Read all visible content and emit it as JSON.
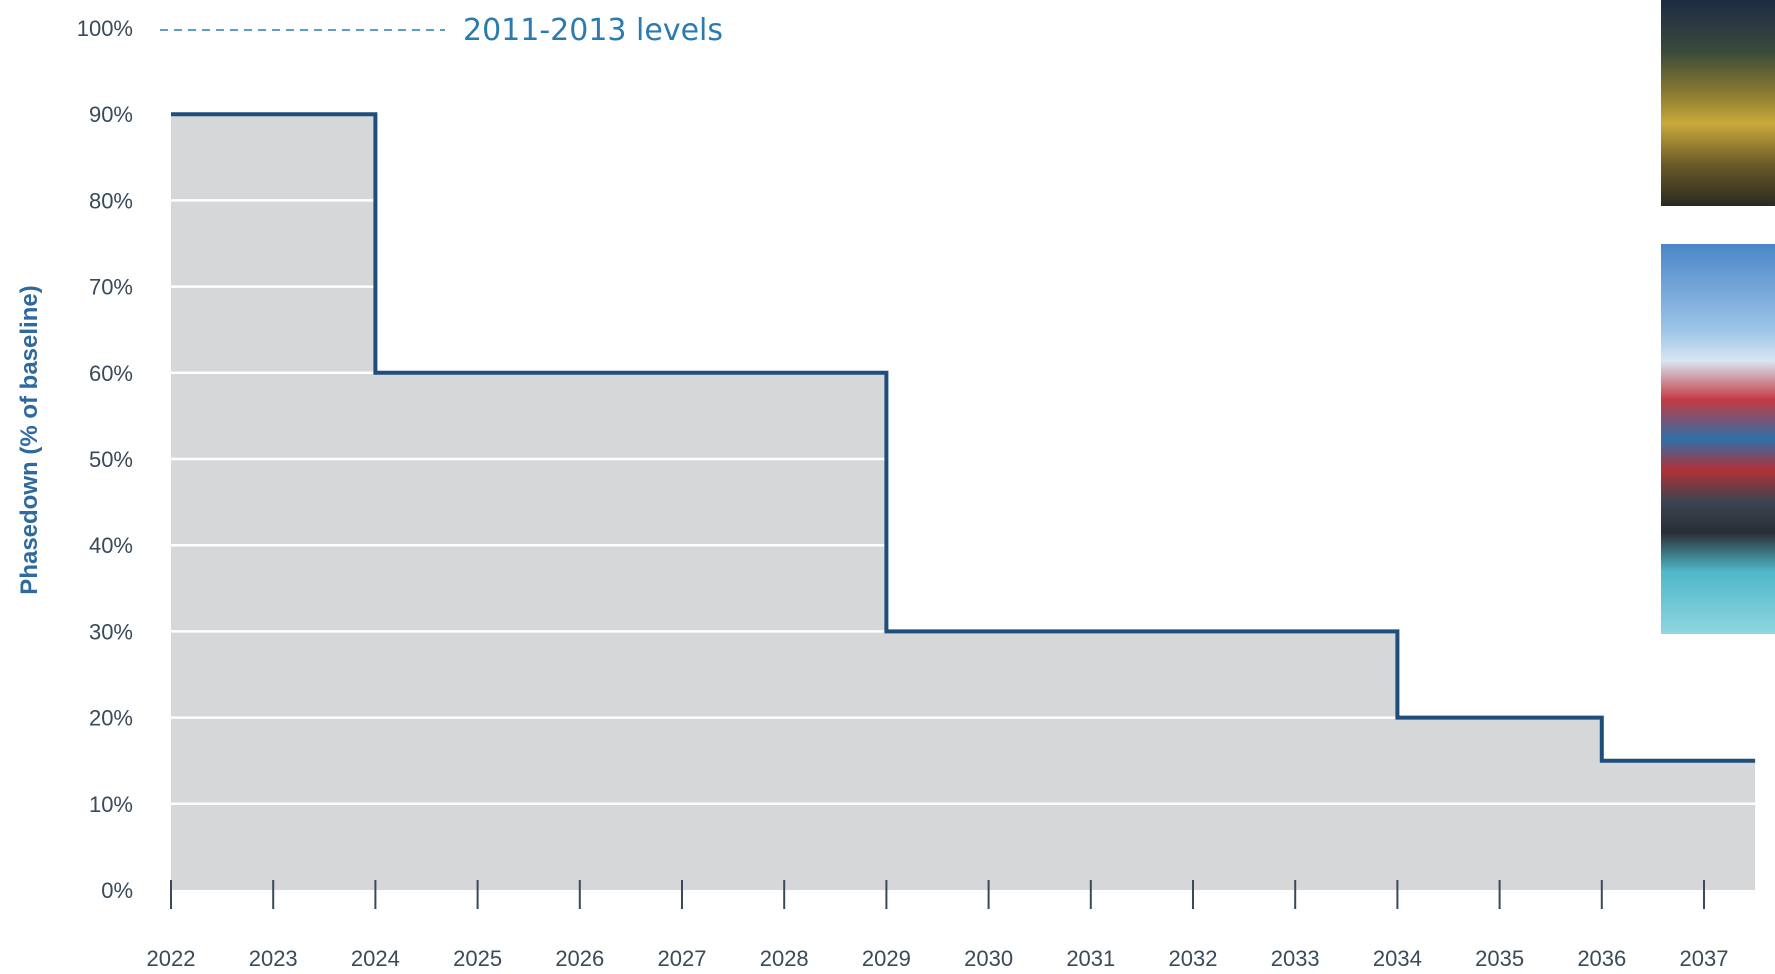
{
  "chart_data": {
    "type": "line",
    "step": true,
    "ylabel": "Phasedown (% of baseline)",
    "ylim": [
      0,
      100
    ],
    "yticks": [
      "0%",
      "10%",
      "20%",
      "30%",
      "40%",
      "50%",
      "60%",
      "70%",
      "80%",
      "90%",
      "100%"
    ],
    "xticks": [
      "2022",
      "2023",
      "2024",
      "2025",
      "2026",
      "2027",
      "2028",
      "2029",
      "2030",
      "2031",
      "2032",
      "2033",
      "2034",
      "2035",
      "2036",
      "2037"
    ],
    "baseline_label": "2011-2013 levels",
    "series": [
      {
        "x": [
          2022,
          2024,
          2024,
          2029,
          2029,
          2034,
          2034,
          2036,
          2036,
          2037.5
        ],
        "y": [
          90,
          90,
          60,
          60,
          30,
          30,
          20,
          20,
          15,
          15
        ]
      }
    ],
    "grid": true,
    "colors": {
      "line": "#1f4e7c",
      "fill": "#d6d7d9",
      "text": "#3a4a5a",
      "accent": "#2b7bb0"
    }
  },
  "images": {
    "top_photo": "refinery-photo",
    "bottom_photo": "container-ship-photo"
  }
}
